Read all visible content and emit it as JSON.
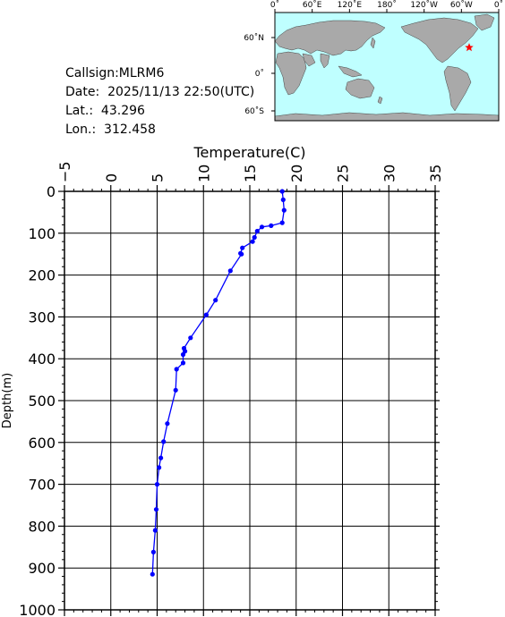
{
  "info": {
    "callsign": "Callsign:MLRM6",
    "date": "Date:  2025/11/13 22:50(UTC)",
    "lat": "Lat.:  43.296",
    "lon": "Lon.:  312.458"
  },
  "map": {
    "top_labels": [
      "0˚",
      "60˚E",
      "120˚E",
      "180˚",
      "120˚W",
      "60˚W",
      "0˚"
    ],
    "left_labels": [
      "60˚N",
      "0˚",
      "60˚S"
    ],
    "ocean_color": "#bfffff",
    "land_color": "#a9a9a9",
    "marker_color": "#ff0000",
    "marker_lon": 312.458,
    "marker_lat": 43.296
  },
  "chart_data": {
    "type": "line",
    "xlabel": "Temperature(C)",
    "ylabel": "Depth(m)",
    "xlim": [
      -5,
      35
    ],
    "ylim": [
      0,
      1000
    ],
    "x_ticks": [
      "−5",
      "0",
      "5",
      "10",
      "15",
      "20",
      "25",
      "30",
      "35"
    ],
    "y_ticks": [
      "0",
      "100",
      "200",
      "300",
      "400",
      "500",
      "600",
      "700",
      "800",
      "900",
      "1000"
    ],
    "y_reversed": true,
    "grid": true,
    "series_color": "#0000ff",
    "series": [
      {
        "points": [
          [
            18.5,
            0
          ],
          [
            18.6,
            20
          ],
          [
            18.7,
            45
          ],
          [
            18.5,
            75
          ],
          [
            17.3,
            82
          ],
          [
            16.3,
            85
          ],
          [
            15.8,
            95
          ],
          [
            15.5,
            110
          ],
          [
            15.3,
            120
          ],
          [
            14.2,
            135
          ],
          [
            14.0,
            148
          ],
          [
            14.1,
            150
          ],
          [
            12.9,
            190
          ],
          [
            11.3,
            260
          ],
          [
            10.3,
            295
          ],
          [
            8.6,
            350
          ],
          [
            7.9,
            375
          ],
          [
            8.0,
            382
          ],
          [
            7.8,
            390
          ],
          [
            7.8,
            410
          ],
          [
            7.1,
            425
          ],
          [
            7.0,
            475
          ],
          [
            6.1,
            555
          ],
          [
            5.7,
            598
          ],
          [
            5.4,
            637
          ],
          [
            5.2,
            660
          ],
          [
            5.0,
            700
          ],
          [
            4.9,
            760
          ],
          [
            4.8,
            810
          ],
          [
            4.6,
            862
          ],
          [
            4.5,
            915
          ]
        ]
      }
    ]
  }
}
